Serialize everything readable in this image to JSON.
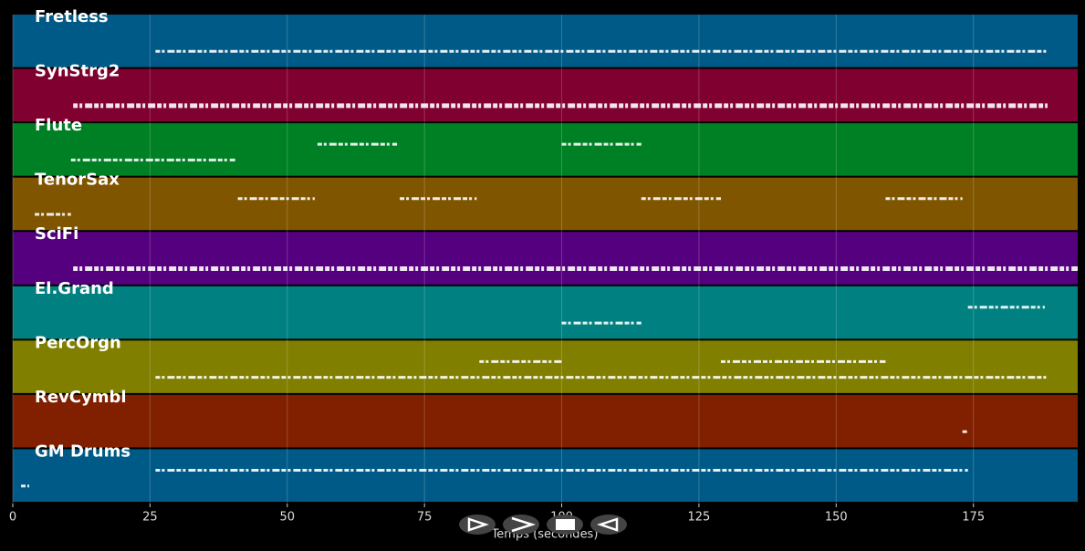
{
  "chart_data": {
    "type": "pianoroll",
    "xlabel": "Temps (secondes)",
    "xlim": [
      0,
      194
    ],
    "xticks": [
      0,
      25,
      50,
      75,
      100,
      125,
      150,
      175
    ],
    "grid": true,
    "tracks": [
      {
        "name": "Fretless",
        "color": "#005a87",
        "segments": [
          [
            26,
            188.5
          ]
        ]
      },
      {
        "name": "SynStrg2",
        "color": "#800030",
        "segments": [
          [
            11,
            188.5
          ]
        ]
      },
      {
        "name": "Flute",
        "color": "#008025",
        "segments": [
          [
            10.6,
            40.5
          ],
          [
            55.5,
            70
          ],
          [
            100,
            114.5
          ]
        ]
      },
      {
        "name": "TenorSax",
        "color": "#7f5500",
        "segments": [
          [
            4,
            10.6
          ],
          [
            41,
            55
          ],
          [
            70.5,
            84.5
          ],
          [
            114.5,
            129
          ],
          [
            159,
            173
          ]
        ]
      },
      {
        "name": "SciFi",
        "color": "#55007f",
        "segments": [
          [
            11,
            194
          ]
        ]
      },
      {
        "name": "El.Grand",
        "color": "#008080",
        "segments": [
          [
            100,
            114.5
          ],
          [
            174,
            188
          ]
        ]
      },
      {
        "name": "PercOrgn",
        "color": "#807f00",
        "segments": [
          [
            26,
            188.5
          ],
          [
            85,
            100
          ],
          [
            129,
            159
          ]
        ]
      },
      {
        "name": "RevCymbl",
        "color": "#802000",
        "segments": [
          [
            173,
            174
          ]
        ]
      },
      {
        "name": "GM Drums",
        "color": "#005a87",
        "segments": [
          [
            1.5,
            3
          ],
          [
            26,
            174
          ]
        ]
      }
    ]
  }
}
